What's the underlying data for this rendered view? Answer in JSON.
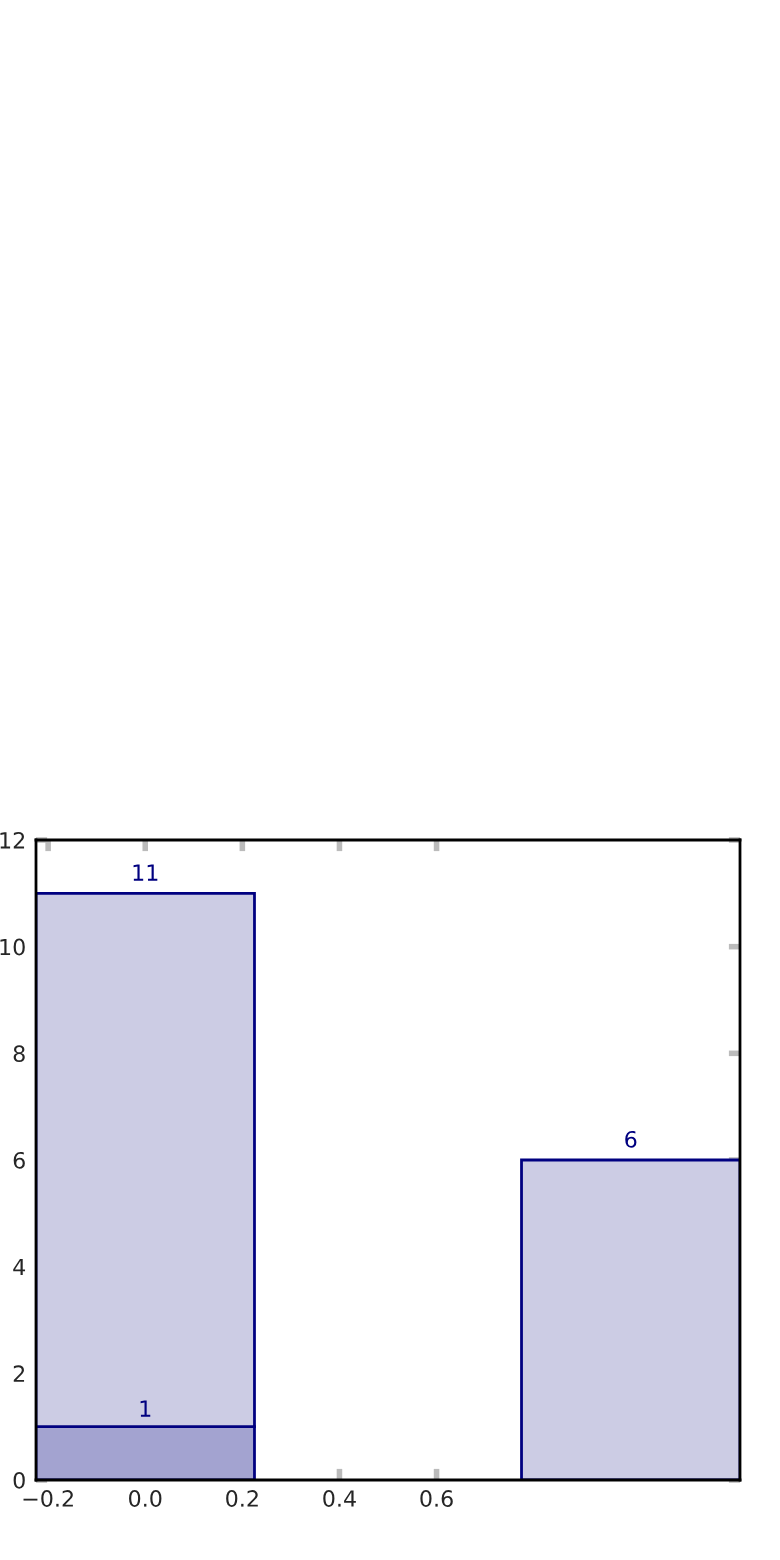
{
  "chart_data": {
    "type": "bar",
    "x": [
      0,
      1
    ],
    "stacked": true,
    "series": [
      {
        "color": "#a3a3d0",
        "values": [
          1,
          null
        ],
        "value_labels": [
          "1",
          null
        ]
      },
      {
        "color": "#cccce4",
        "values": [
          10,
          6
        ]
      }
    ],
    "totals": [
      "11",
      "6"
    ],
    "xlim": [
      -0.225,
      1.225
    ],
    "xticks": [
      {
        "value": -0.2,
        "label": "−0.2"
      },
      {
        "value": 0.0,
        "label": "0.0"
      },
      0.2,
      0.4,
      0.6
    ],
    "ylim": [
      0,
      12
    ],
    "yticks": [
      0,
      2,
      4,
      6,
      8,
      10,
      12
    ],
    "grid": false
  }
}
